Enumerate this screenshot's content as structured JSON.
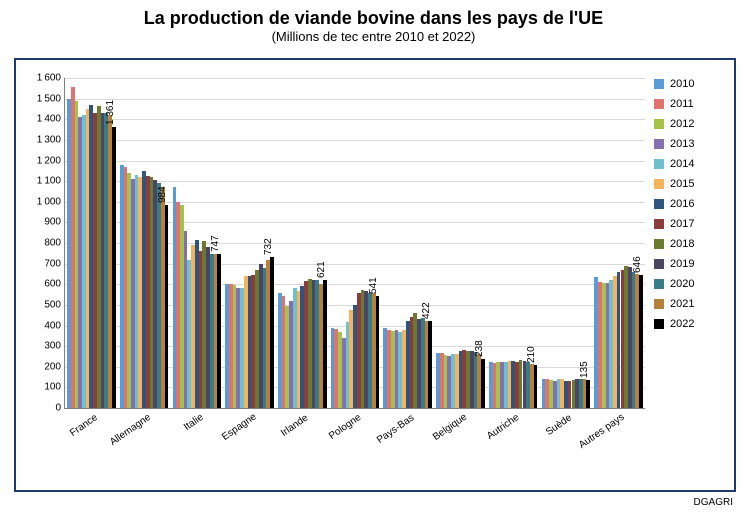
{
  "title": "La production de viande bovine dans les pays de l'UE",
  "subtitle": "(Millions de tec entre 2010 et 2022)",
  "source_text": "DGAGRI",
  "chart": {
    "type": "bar",
    "background_color": "#ffffff",
    "frame_border_color": "#1f3a6f",
    "grid_color": "#d9d9d9",
    "axis_color": "#808080",
    "title_fontsize": 18,
    "subtitle_fontsize": 13,
    "tick_fontsize": 10,
    "legend_fontsize": 11,
    "ylim": [
      0,
      1600
    ],
    "ytick_step": 100,
    "categories": [
      "France",
      "Allemagne",
      "Italie",
      "Espagne",
      "Irlande",
      "Pologne",
      "Pays-Bas",
      "Belgique",
      "Autriche",
      "Suède",
      "Autres pays"
    ],
    "series": [
      {
        "name": "2010",
        "color": "#5b9bd5",
        "values": [
          1500,
          1180,
          1070,
          600,
          560,
          390,
          390,
          265,
          225,
          140,
          635
        ]
      },
      {
        "name": "2011",
        "color": "#e0736e",
        "values": [
          1555,
          1170,
          1000,
          600,
          545,
          385,
          380,
          265,
          220,
          140,
          610
        ]
      },
      {
        "name": "2012",
        "color": "#a5c34a",
        "values": [
          1490,
          1140,
          985,
          595,
          495,
          370,
          375,
          255,
          225,
          135,
          605
        ]
      },
      {
        "name": "2013",
        "color": "#8470b0",
        "values": [
          1410,
          1110,
          860,
          580,
          520,
          340,
          380,
          250,
          225,
          130,
          605
        ]
      },
      {
        "name": "2014",
        "color": "#6fc0ce",
        "values": [
          1420,
          1130,
          720,
          580,
          580,
          415,
          370,
          260,
          225,
          140,
          620
        ]
      },
      {
        "name": "2015",
        "color": "#f5b35e",
        "values": [
          1450,
          1120,
          790,
          640,
          565,
          475,
          380,
          260,
          230,
          140,
          640
        ]
      },
      {
        "name": "2016",
        "color": "#2f557f",
        "values": [
          1470,
          1150,
          815,
          640,
          590,
          500,
          420,
          275,
          230,
          130,
          660
        ]
      },
      {
        "name": "2017",
        "color": "#8b3d3d",
        "values": [
          1430,
          1125,
          760,
          645,
          615,
          560,
          440,
          280,
          225,
          130,
          670
        ]
      },
      {
        "name": "2018",
        "color": "#6b7a2e",
        "values": [
          1465,
          1120,
          810,
          670,
          625,
          570,
          460,
          275,
          235,
          135,
          690
        ]
      },
      {
        "name": "2019",
        "color": "#4b4565",
        "values": [
          1430,
          1105,
          780,
          700,
          620,
          565,
          430,
          275,
          230,
          140,
          685
        ]
      },
      {
        "name": "2020",
        "color": "#3a7b88",
        "values": [
          1430,
          1090,
          745,
          680,
          620,
          560,
          435,
          270,
          225,
          140,
          660
        ]
      },
      {
        "name": "2021",
        "color": "#b7803b",
        "values": [
          1420,
          1070,
          745,
          720,
          600,
          560,
          420,
          260,
          215,
          140,
          650
        ]
      },
      {
        "name": "2022",
        "color": "#000000",
        "values": [
          1361,
          984,
          747,
          732,
          621,
          541,
          422,
          238,
          210,
          135,
          646
        ]
      }
    ],
    "last_series_labels": [
      "1 361",
      "984",
      "747",
      "732",
      "621",
      "541",
      "422",
      "238",
      "210",
      "135",
      "646"
    ]
  }
}
